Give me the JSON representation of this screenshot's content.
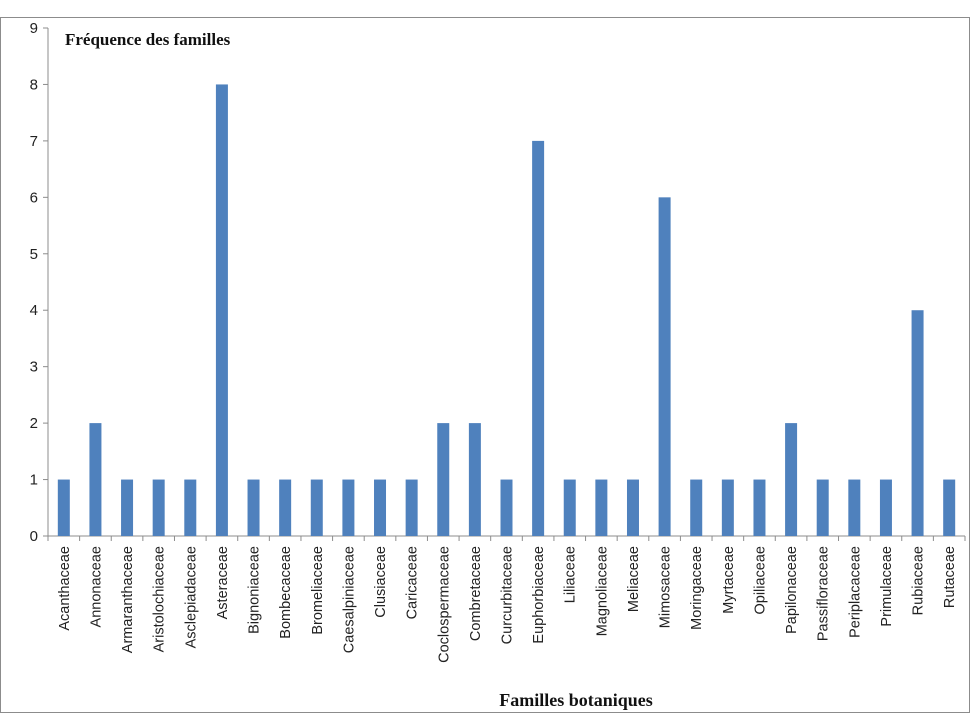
{
  "chart_data": {
    "type": "bar",
    "ylabel": "Fréquence des familles",
    "xlabel": "Familles botaniques",
    "ylim": [
      0,
      9
    ],
    "yticks": [
      0,
      1,
      2,
      3,
      4,
      5,
      6,
      7,
      8,
      9
    ],
    "grid": false,
    "legend": "none",
    "bar_color": "#4f81bd",
    "categories": [
      "Acanthaceae",
      "Annonaceae",
      "Armaranthaceae",
      "Aristolochiaceae",
      "Asclepiadaceae",
      "Asteraceae",
      "Bignoniaceae",
      "Bombecaceae",
      "Bromeliaceae",
      "Caesalpiniaceae",
      "Clusiaceae",
      "Caricaceae",
      "Coclospermaceae",
      "Combretaceae",
      "Curcurbitaceae",
      "Euphorbiaceae",
      "Liliaceae",
      "Magnoliaceae",
      "Meliaceae",
      "Mimosaceae",
      "Moringaceae",
      "Myrtaceae",
      "Opiliaceae",
      "Papilonaceae",
      "Passifloraceae",
      "Periplacaceae",
      "Primulaceae",
      "Rubiaceae",
      "Rutaceae"
    ],
    "values": [
      1,
      2,
      1,
      1,
      1,
      8,
      1,
      1,
      1,
      1,
      1,
      1,
      2,
      2,
      1,
      7,
      1,
      1,
      1,
      6,
      1,
      1,
      1,
      2,
      1,
      1,
      1,
      4,
      1
    ]
  }
}
